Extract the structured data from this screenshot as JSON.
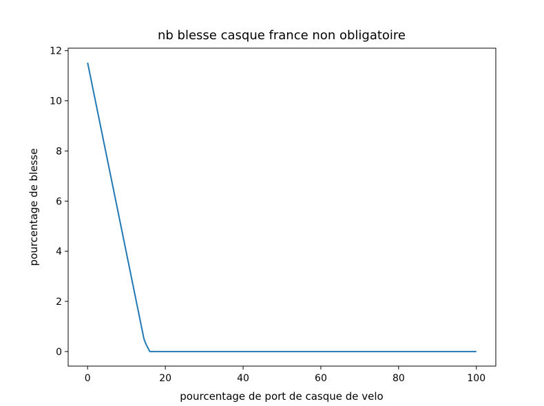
{
  "chart_data": {
    "type": "line",
    "title": "nb blesse casque france non obligatoire",
    "xlabel": "pourcentage de port de casque de velo",
    "ylabel": "pourcentage de blesse",
    "xlim": [
      -5,
      105
    ],
    "ylim": [
      -0.58,
      12.1
    ],
    "xticks": [
      0,
      20,
      40,
      60,
      80,
      100
    ],
    "yticks": [
      0,
      2,
      4,
      6,
      8,
      10,
      12
    ],
    "grid": false,
    "series": [
      {
        "color": "#1f77b4",
        "x": [
          0,
          14.5,
          15,
          16,
          20,
          30,
          40,
          50,
          60,
          70,
          80,
          90,
          100
        ],
        "y": [
          11.52,
          0.5,
          0.3,
          0,
          0,
          0,
          0,
          0,
          0,
          0,
          0,
          0,
          0
        ]
      }
    ]
  }
}
